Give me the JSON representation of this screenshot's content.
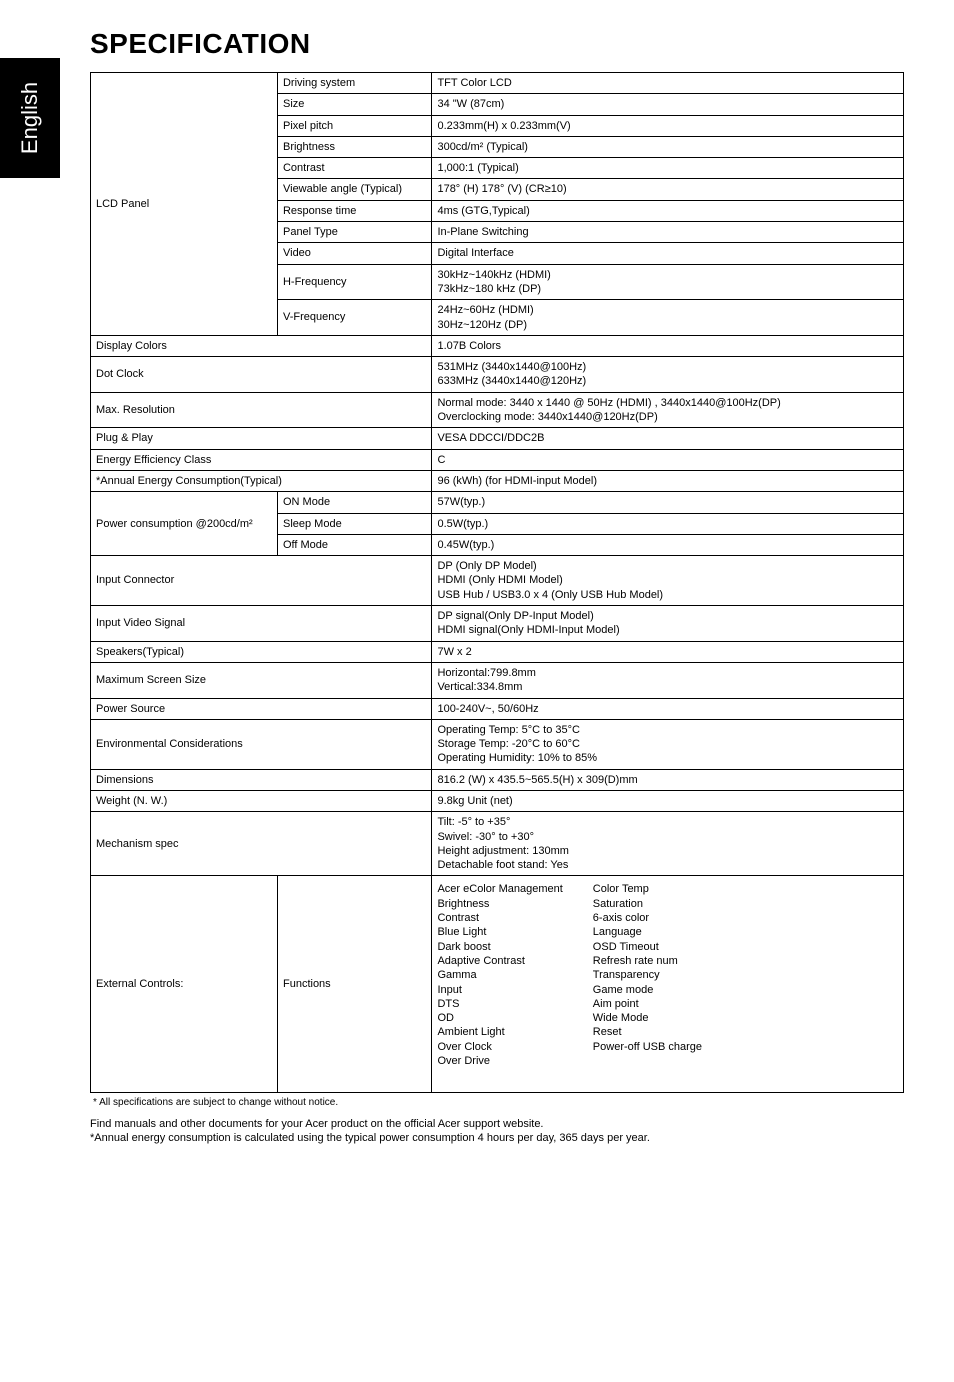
{
  "side_tab": "English",
  "title": "SPECIFICATION",
  "rows": [
    {
      "group": "LCD Panel",
      "groupspan": 11,
      "label": "Driving system",
      "value": "TFT Color LCD"
    },
    {
      "label": "Size",
      "value": "34 \"W (87cm)"
    },
    {
      "label": "Pixel pitch",
      "value": "0.233mm(H) x 0.233mm(V)"
    },
    {
      "label": "Brightness",
      "value": "300cd/m² (Typical)"
    },
    {
      "label": "Contrast",
      "value": "1,000:1 (Typical)"
    },
    {
      "label": "Viewable angle (Typical)",
      "value": "178° (H) 178° (V) (CR≥10)"
    },
    {
      "label": "Response time",
      "value": "4ms (GTG,Typical)"
    },
    {
      "label": "Panel Type",
      "value": "In-Plane Switching"
    },
    {
      "label": "Video",
      "value": "Digital Interface"
    },
    {
      "label": "H-Frequency",
      "value": "30kHz~140kHz (HDMI)\n73kHz~180 kHz (DP)"
    },
    {
      "label": "V-Frequency",
      "value": "24Hz~60Hz (HDMI)\n30Hz~120Hz (DP)"
    },
    {
      "wide": true,
      "label": "Display Colors",
      "value": "1.07B Colors"
    },
    {
      "wide": true,
      "label": "Dot Clock",
      "value": "531MHz  (3440x1440@100Hz)\n633MHz  (3440x1440@120Hz)"
    },
    {
      "wide": true,
      "label": "Max. Resolution",
      "value": "Normal mode: 3440 x 1440 @ 50Hz (HDMI) , 3440x1440@100Hz(DP)\nOverclocking mode: 3440x1440@120Hz(DP)"
    },
    {
      "wide": true,
      "label": "Plug & Play",
      "value": "VESA DDCCI/DDC2B"
    },
    {
      "wide": true,
      "label": "Energy Efficiency Class",
      "value": "C"
    },
    {
      "wide": true,
      "label": "*Annual Energy Consumption(Typical)",
      "value": "96 (kWh) (for HDMI-input Model)"
    },
    {
      "group": "Power consumption @200cd/m²",
      "groupspan": 3,
      "label": "ON Mode",
      "value": "57W(typ.)"
    },
    {
      "label": "Sleep Mode",
      "value": "0.5W(typ.)"
    },
    {
      "label": "Off Mode",
      "value": "0.45W(typ.)"
    },
    {
      "wide": true,
      "label": "Input Connector",
      "value": "DP (Only DP Model)\nHDMI (Only HDMI Model)\nUSB Hub / USB3.0 x 4 (Only USB Hub Model)"
    },
    {
      "wide": true,
      "label": "Input Video Signal",
      "value": "DP signal(Only DP-Input Model)\nHDMI signal(Only HDMI-Input Model)"
    },
    {
      "wide": true,
      "label": "Speakers(Typical)",
      "value": "7W x 2"
    },
    {
      "wide": true,
      "label": "Maximum Screen Size",
      "value": "Horizontal:799.8mm\nVertical:334.8mm"
    },
    {
      "wide": true,
      "label": "Power Source",
      "value": "100-240V~, 50/60Hz"
    },
    {
      "wide": true,
      "label": "Environmental Considerations",
      "value": "Operating Temp: 5°C to 35°C\nStorage Temp: -20°C to 60°C\nOperating Humidity: 10% to 85%"
    },
    {
      "wide": true,
      "label": "Dimensions",
      "value": "816.2 (W) x 435.5~565.5(H) x 309(D)mm"
    },
    {
      "wide": true,
      "label": "Weight (N. W.)",
      "value": "9.8kg Unit (net)"
    },
    {
      "wide": true,
      "label": "Mechanism spec",
      "value": "Tilt: -5° to +35°\nSwivel: -30° to +30°\nHeight adjustment: 130mm\nDetachable foot stand: Yes"
    },
    {
      "group": "External Controls:",
      "groupspan": 1,
      "label": "Functions",
      "value_columns": [
        "Acer eColor Management\nBrightness\nContrast\nBlue Light\nDark boost\nAdaptive Contrast\nGamma\nInput\nDTS\nOD\nAmbient Light\nOver Clock\nOver Drive",
        "Color Temp\nSaturation\n6-axis color\nLanguage\nOSD Timeout\nRefresh rate num\nTransparency\nGame mode\nAim point\nWide Mode\nReset\nPower-off USB charge"
      ]
    }
  ],
  "footnote": "* All specifications are subject to change without notice.",
  "notes": [
    "Find manuals and other documents for your Acer product on the official Acer support website.",
    "*Annual energy consumption is calculated using the typical power consumption 4 hours per day, 365 days per year."
  ],
  "colors": {
    "tab_bg": "#000000",
    "tab_fg": "#ffffff",
    "border": "#000000",
    "text": "#000000",
    "bg": "#ffffff"
  }
}
